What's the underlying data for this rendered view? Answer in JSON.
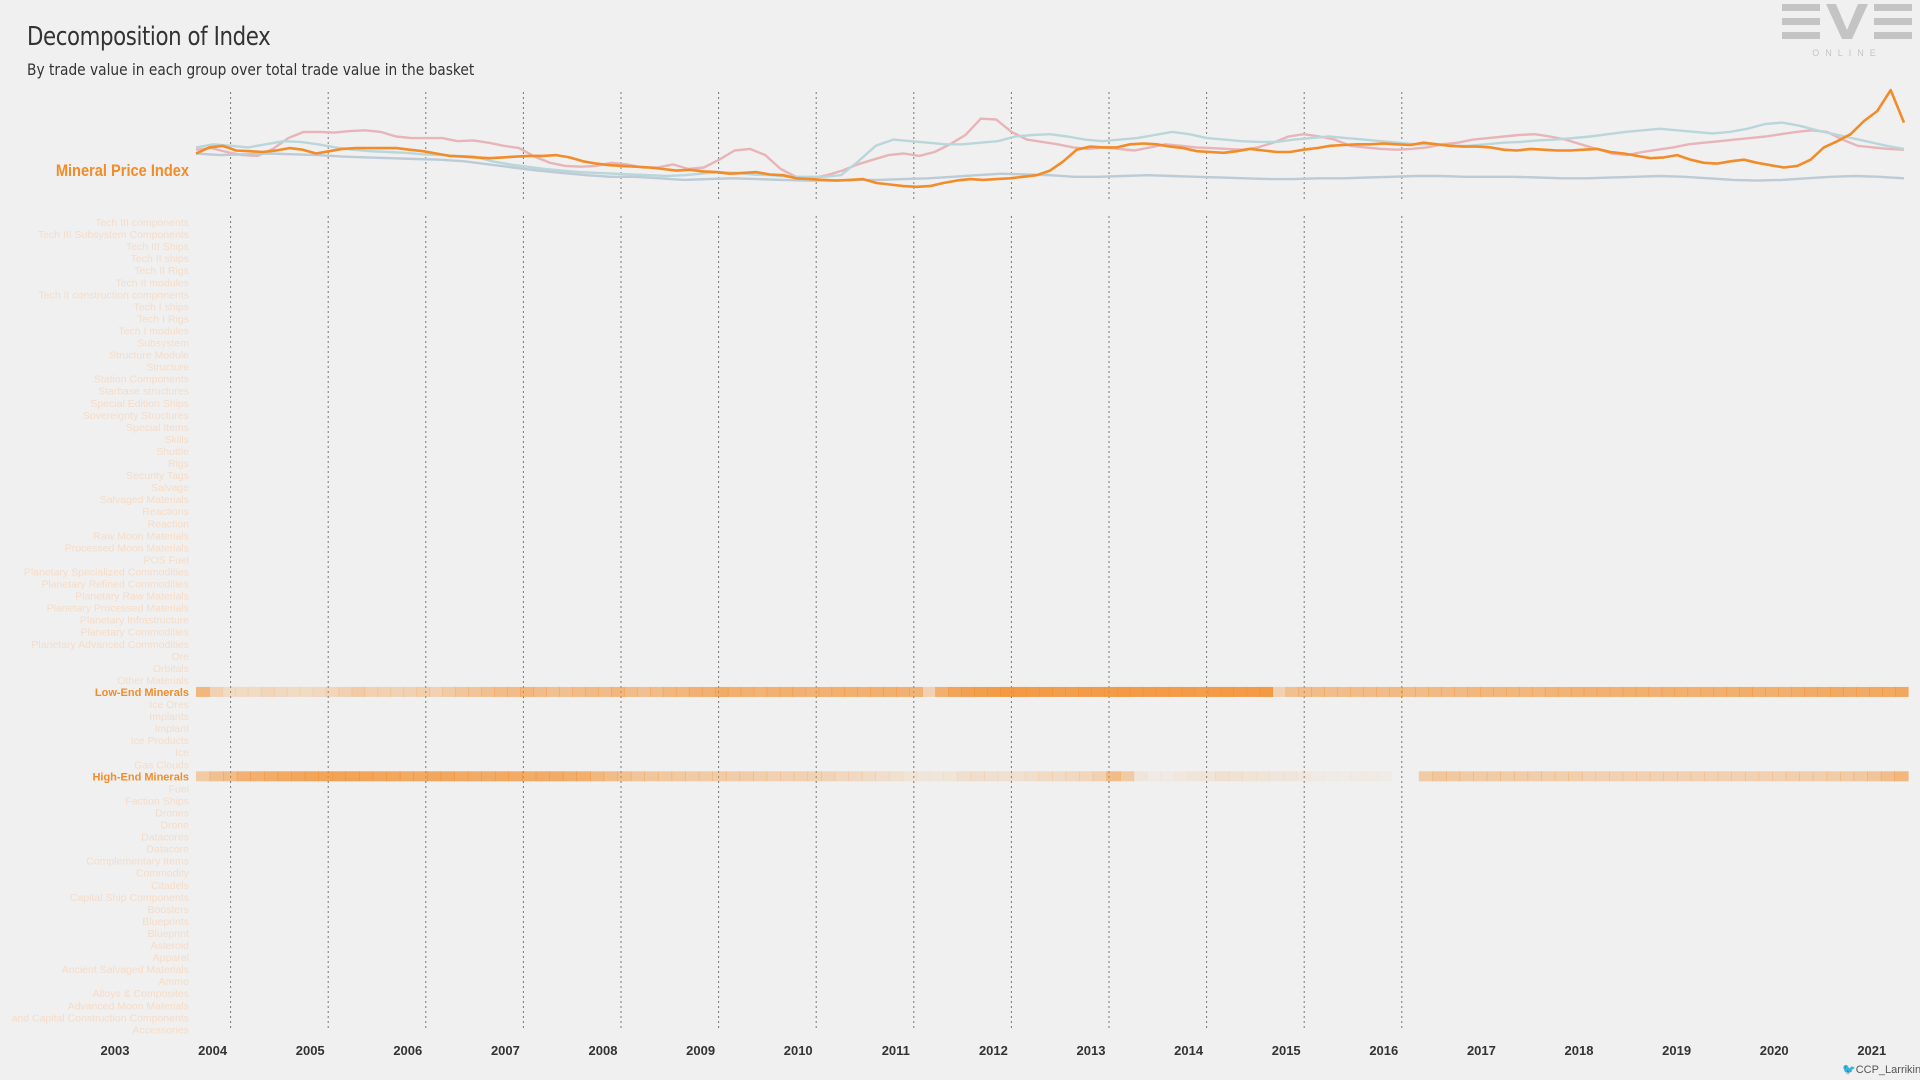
{
  "header": {
    "title": "Decomposition of Index",
    "subtitle": "By trade value in each group over total trade value in the basket"
  },
  "logo": {
    "text": "EVE",
    "subtext": "ONLINE"
  },
  "credit": {
    "icon": "twitter-bird-icon",
    "handle": "CCP_Larrikin"
  },
  "colors": {
    "accent": "#f28c28",
    "faint_label": "#f5dcc8",
    "pink_line": "#e8b4b8",
    "teal_line": "#b9d6da",
    "blue_line": "#bccbd6",
    "grid": "#777777",
    "text": "#333333"
  },
  "chart_data": [
    {
      "type": "line",
      "ylabel": "Mineral Price Index",
      "x_start": 2003.83,
      "x_end": 2021.33,
      "series": [
        {
          "role": "highlight",
          "color": "#f28c28",
          "values": [
            1.0,
            1.08,
            1.1,
            1.04,
            1.03,
            1.02,
            1.04,
            1.07,
            1.05,
            1.0,
            1.03,
            1.06,
            1.07,
            1.07,
            1.07,
            1.07,
            1.05,
            1.03,
            1.0,
            0.97,
            0.96,
            0.95,
            0.94,
            0.95,
            0.96,
            0.97,
            0.97,
            0.98,
            0.95,
            0.9,
            0.87,
            0.85,
            0.84,
            0.83,
            0.82,
            0.8,
            0.78,
            0.79,
            0.77,
            0.76,
            0.74,
            0.75,
            0.76,
            0.73,
            0.72,
            0.68,
            0.67,
            0.66,
            0.65,
            0.66,
            0.67,
            0.62,
            0.6,
            0.58,
            0.57,
            0.58,
            0.62,
            0.65,
            0.67,
            0.66,
            0.67,
            0.68,
            0.7,
            0.72,
            0.78,
            0.9,
            1.05,
            1.09,
            1.08,
            1.08,
            1.12,
            1.13,
            1.12,
            1.09,
            1.07,
            1.03,
            1.02,
            1.01,
            1.03,
            1.06,
            1.04,
            1.02,
            1.02,
            1.05,
            1.07,
            1.1,
            1.11,
            1.12,
            1.12,
            1.13,
            1.12,
            1.11,
            1.14,
            1.12,
            1.1,
            1.09,
            1.09,
            1.08,
            1.05,
            1.04,
            1.06,
            1.05,
            1.04,
            1.04,
            1.05,
            1.06,
            1.02,
            1.0,
            0.97,
            0.94,
            0.95,
            0.98,
            0.92,
            0.88,
            0.87,
            0.9,
            0.92,
            0.88,
            0.85,
            0.82,
            0.84,
            0.92,
            1.08,
            1.16,
            1.25,
            1.42,
            1.55,
            1.82,
            1.4
          ]
        },
        {
          "role": "context",
          "color": "#e8b4b8",
          "values": [
            1.05,
            1.07,
            1.02,
            0.98,
            0.97,
            1.06,
            1.2,
            1.28,
            1.28,
            1.27,
            1.29,
            1.3,
            1.28,
            1.22,
            1.2,
            1.2,
            1.2,
            1.16,
            1.17,
            1.14,
            1.1,
            1.07,
            0.96,
            0.88,
            0.84,
            0.83,
            0.84,
            0.88,
            0.86,
            0.82,
            0.82,
            0.86,
            0.8,
            0.82,
            0.92,
            1.04,
            1.06,
            0.98,
            0.8,
            0.7,
            0.68,
            0.72,
            0.78,
            0.86,
            0.92,
            0.98,
            1.0,
            0.97,
            1.02,
            1.12,
            1.24,
            1.45,
            1.44,
            1.28,
            1.18,
            1.15,
            1.12,
            1.08,
            1.06,
            1.08,
            1.06,
            1.04,
            1.08,
            1.12,
            1.1,
            1.08,
            1.07,
            1.06,
            1.05,
            1.08,
            1.14,
            1.22,
            1.25,
            1.22,
            1.18,
            1.1,
            1.08,
            1.06,
            1.05,
            1.06,
            1.08,
            1.12,
            1.14,
            1.18,
            1.2,
            1.22,
            1.24,
            1.25,
            1.22,
            1.18,
            1.12,
            1.06,
            1.0,
            0.98,
            1.02,
            1.05,
            1.08,
            1.12,
            1.14,
            1.16,
            1.18,
            1.2,
            1.22,
            1.25,
            1.28,
            1.3,
            1.28,
            1.18,
            1.1,
            1.08,
            1.06,
            1.05
          ]
        },
        {
          "role": "context",
          "color": "#b9d6da",
          "values": [
            1.08,
            1.12,
            1.1,
            1.08,
            1.12,
            1.16,
            1.15,
            1.12,
            1.08,
            1.05,
            1.03,
            1.02,
            1.01,
            0.99,
            0.98,
            0.97,
            0.96,
            0.9,
            0.86,
            0.83,
            0.8,
            0.78,
            0.76,
            0.75,
            0.74,
            0.73,
            0.72,
            0.71,
            0.72,
            0.74,
            0.76,
            0.75,
            0.73,
            0.72,
            0.7,
            0.7,
            0.7,
            0.72,
            0.9,
            1.1,
            1.18,
            1.16,
            1.14,
            1.12,
            1.12,
            1.14,
            1.16,
            1.22,
            1.24,
            1.25,
            1.22,
            1.18,
            1.16,
            1.18,
            1.2,
            1.24,
            1.28,
            1.25,
            1.2,
            1.18,
            1.16,
            1.15,
            1.15,
            1.18,
            1.2,
            1.22,
            1.2,
            1.18,
            1.16,
            1.14,
            1.12,
            1.12,
            1.1,
            1.1,
            1.12,
            1.14,
            1.15,
            1.17,
            1.18,
            1.2,
            1.22,
            1.25,
            1.28,
            1.3,
            1.32,
            1.3,
            1.28,
            1.26,
            1.28,
            1.32,
            1.38,
            1.4,
            1.36,
            1.3,
            1.25,
            1.2,
            1.15,
            1.1,
            1.06
          ]
        },
        {
          "role": "context",
          "color": "#bccbd6",
          "values": [
            1.0,
            0.98,
            0.99,
            1.0,
            0.99,
            0.98,
            0.96,
            0.95,
            0.94,
            0.93,
            0.92,
            0.9,
            0.86,
            0.82,
            0.78,
            0.75,
            0.72,
            0.7,
            0.7,
            0.68,
            0.66,
            0.67,
            0.68,
            0.67,
            0.66,
            0.65,
            0.65,
            0.66,
            0.66,
            0.67,
            0.68,
            0.7,
            0.72,
            0.74,
            0.73,
            0.72,
            0.7,
            0.7,
            0.71,
            0.72,
            0.71,
            0.7,
            0.69,
            0.68,
            0.67,
            0.67,
            0.68,
            0.68,
            0.69,
            0.7,
            0.71,
            0.71,
            0.7,
            0.7,
            0.7,
            0.69,
            0.68,
            0.68,
            0.69,
            0.7,
            0.71,
            0.7,
            0.68,
            0.66,
            0.65,
            0.66,
            0.68,
            0.7,
            0.71,
            0.7,
            0.68
          ]
        }
      ]
    },
    {
      "type": "heatmap",
      "years": [
        "2003",
        "2004",
        "2005",
        "2006",
        "2007",
        "2008",
        "2009",
        "2010",
        "2011",
        "2012",
        "2013",
        "2014",
        "2015",
        "2016",
        "2017",
        "2018",
        "2019",
        "2020",
        "2021"
      ],
      "year_start": 2003,
      "x_start": 2003.83,
      "x_end": 2021.33,
      "categories": [
        "Tech III components",
        "Tech III Subsystem Components",
        "Tech III Ships",
        "Tech II ships",
        "Tech II Rigs",
        "Tech II modules",
        "Tech II construction components",
        "Tech I ships",
        "Tech I Rigs",
        "Tech I modules",
        "Subsystem",
        "Structure Module",
        "Structure",
        "Station Components",
        "Starbase structures",
        "Special Edition Ships",
        "Sovereignty Structures",
        "Special Items",
        "Skills",
        "Shuttle",
        "Rigs",
        "Security Tags",
        "Salvage",
        "Salvaged Materials",
        "Reactions",
        "Reaction",
        "Raw Moon Materials",
        "Processed Moon Materials",
        "POS Fuel",
        "Planetary Specialized Commodities",
        "Planetary Refined Commodities",
        "Planetary Raw Materials",
        "Planetary Processed Materials",
        "Planetary Infrastructure",
        "Planetary Commodities",
        "Planetary Advanced Commodities",
        "Ore",
        "Orbitals",
        "Other Materials",
        "Low-End Minerals",
        "Ice Ores",
        "Implants",
        "Implant",
        "Ice Products",
        "Ice",
        "Gas Clouds",
        "High-End Minerals",
        "Fuel",
        "Faction Ships",
        "Drones",
        "Drone",
        "Datacores",
        "Datacore",
        "Complementary Items",
        "Commodity",
        "Citadels",
        "Capital Ship Components",
        "Boosters",
        "Blueprints",
        "Blueprint",
        "Asteroid",
        "Apparel",
        "Ancient Salvaged Materials",
        "Ammo",
        "Alloys & Composites",
        "Advanced Moon Materials",
        "and Capital Construction Components",
        "Accessories"
      ],
      "rows": [
        {
          "name": "Low-End Minerals",
          "intensity": [
            0.55,
            0.3,
            0.2,
            0.2,
            0.2,
            0.25,
            0.22,
            0.2,
            0.2,
            0.22,
            0.25,
            0.3,
            0.35,
            0.3,
            0.3,
            0.28,
            0.3,
            0.32,
            0.3,
            0.35,
            0.4,
            0.42,
            0.45,
            0.5,
            0.5,
            0.55,
            0.5,
            0.45,
            0.45,
            0.5,
            0.52,
            0.5,
            0.55,
            0.5,
            0.45,
            0.5,
            0.55,
            0.55,
            0.6,
            0.6,
            0.65,
            0.62,
            0.6,
            0.58,
            0.6,
            0.62,
            0.6,
            0.58,
            0.6,
            0.62,
            0.62,
            0.6,
            0.62,
            0.62,
            0.6,
            0.58,
            0.3,
            0.62,
            0.72,
            0.75,
            0.78,
            0.8,
            0.82,
            0.82,
            0.8,
            0.8,
            0.78,
            0.78,
            0.8,
            0.8,
            0.8,
            0.82,
            0.8,
            0.8,
            0.8,
            0.8,
            0.8,
            0.78,
            0.8,
            0.82,
            0.8,
            0.8,
            0.82,
            0.3,
            0.45,
            0.5,
            0.5,
            0.48,
            0.48,
            0.5,
            0.5,
            0.5,
            0.52,
            0.5,
            0.5,
            0.52,
            0.52,
            0.52,
            0.55,
            0.55,
            0.55,
            0.55,
            0.55,
            0.55,
            0.58,
            0.58,
            0.6,
            0.6,
            0.6,
            0.6,
            0.62,
            0.62,
            0.6,
            0.62,
            0.62,
            0.6,
            0.62,
            0.62,
            0.62,
            0.64,
            0.62,
            0.62,
            0.62,
            0.64,
            0.66,
            0.66,
            0.68,
            0.66,
            0.66,
            0.68,
            0.68,
            0.7
          ]
        },
        {
          "name": "High-End Minerals",
          "intensity": [
            0.35,
            0.45,
            0.5,
            0.6,
            0.62,
            0.65,
            0.68,
            0.7,
            0.72,
            0.72,
            0.74,
            0.74,
            0.72,
            0.7,
            0.7,
            0.68,
            0.68,
            0.7,
            0.7,
            0.68,
            0.66,
            0.66,
            0.68,
            0.66,
            0.65,
            0.66,
            0.66,
            0.64,
            0.62,
            0.55,
            0.5,
            0.45,
            0.42,
            0.4,
            0.38,
            0.38,
            0.36,
            0.36,
            0.35,
            0.34,
            0.34,
            0.32,
            0.3,
            0.3,
            0.3,
            0.28,
            0.26,
            0.24,
            0.22,
            0.2,
            0.18,
            0.15,
            0.12,
            0.1,
            0.1,
            0.12,
            0.16,
            0.18,
            0.16,
            0.15,
            0.15,
            0.18,
            0.2,
            0.2,
            0.22,
            0.25,
            0.3,
            0.5,
            0.35,
            0.1,
            0.05,
            0.06,
            0.08,
            0.1,
            0.12,
            0.15,
            0.14,
            0.12,
            0.12,
            0.1,
            0.1,
            0.08,
            0.06,
            0.04,
            0.04,
            0.06,
            0.05,
            0.04,
            0.0,
            0.0,
            0.35,
            0.4,
            0.38,
            0.36,
            0.36,
            0.35,
            0.34,
            0.34,
            0.33,
            0.32,
            0.32,
            0.32,
            0.3,
            0.3,
            0.3,
            0.3,
            0.3,
            0.3,
            0.3,
            0.3,
            0.3,
            0.3,
            0.3,
            0.3,
            0.3,
            0.3,
            0.3,
            0.32,
            0.32,
            0.32,
            0.34,
            0.36,
            0.38,
            0.42,
            0.48,
            0.55
          ]
        }
      ]
    }
  ]
}
